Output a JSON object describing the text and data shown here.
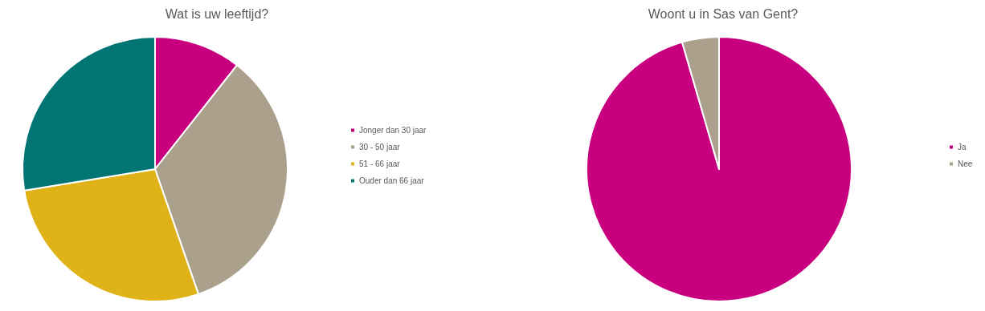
{
  "chart_data": [
    {
      "type": "pie",
      "title": "Wat is uw leeftijd?",
      "categories": [
        "Jonger dan 30 jaar",
        "30 - 50 jaar",
        "51 - 66 jaar",
        "Ouder dan 66 jaar"
      ],
      "values": [
        10.6,
        34.1,
        27.7,
        27.6
      ],
      "colors": [
        "#c8007f",
        "#aaa08b",
        "#dfb217",
        "#007574"
      ],
      "legend": "right"
    },
    {
      "type": "pie",
      "title": "Woont u in Sas van Gent?",
      "categories": [
        "Ja",
        "Nee"
      ],
      "values": [
        95.5,
        4.5
      ],
      "colors": [
        "#c8007f",
        "#aaa08b"
      ],
      "legend": "right"
    }
  ]
}
